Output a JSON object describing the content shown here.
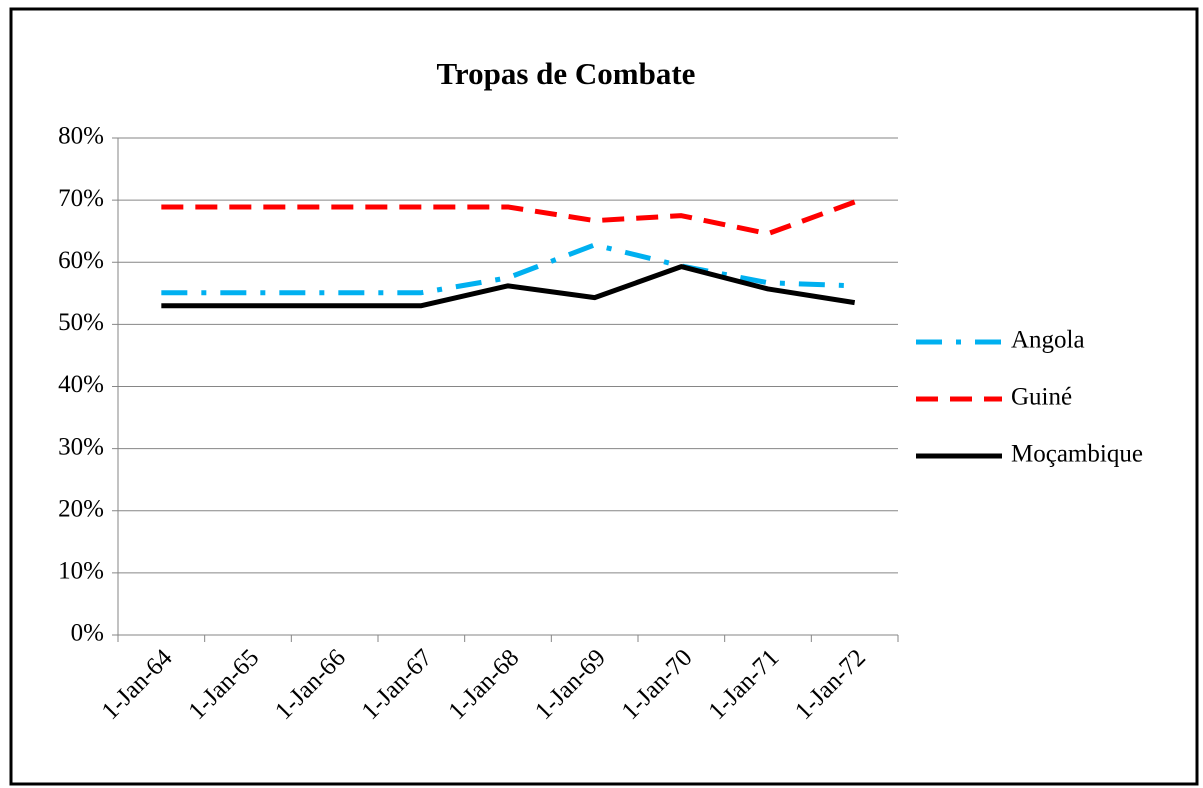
{
  "chart_data": {
    "type": "line",
    "title": "Tropas de Combate",
    "categories": [
      "1-Jan-64",
      "1-Jan-65",
      "1-Jan-66",
      "1-Jan-67",
      "1-Jan-68",
      "1-Jan-69",
      "1-Jan-70",
      "1-Jan-71",
      "1-Jan-72"
    ],
    "series": [
      {
        "name": "Angola",
        "color": "#00b0f0",
        "line_style": "dashdot",
        "values": [
          55.1,
          55.1,
          55.1,
          55.1,
          57.5,
          62.8,
          59.4,
          56.7,
          56.2
        ]
      },
      {
        "name": "Guiné",
        "color": "#ff0000",
        "line_style": "dash",
        "values": [
          68.9,
          68.9,
          68.9,
          68.9,
          68.9,
          66.7,
          67.5,
          64.6,
          69.7
        ]
      },
      {
        "name": "Moçambique",
        "color": "#000000",
        "line_style": "solid",
        "values": [
          53,
          53,
          53,
          53,
          56.2,
          54.3,
          59.3,
          55.7,
          53.5
        ]
      }
    ],
    "ylim": [
      0,
      80
    ],
    "yticks": [
      {
        "value": 0,
        "label": "0%"
      },
      {
        "value": 10,
        "label": "10%"
      },
      {
        "value": 20,
        "label": "20%"
      },
      {
        "value": 30,
        "label": "30%"
      },
      {
        "value": 40,
        "label": "40%"
      },
      {
        "value": 50,
        "label": "50%"
      },
      {
        "value": 60,
        "label": "60%"
      },
      {
        "value": 70,
        "label": "70%"
      },
      {
        "value": 80,
        "label": "80%"
      }
    ],
    "grid": true,
    "legend": "right"
  }
}
